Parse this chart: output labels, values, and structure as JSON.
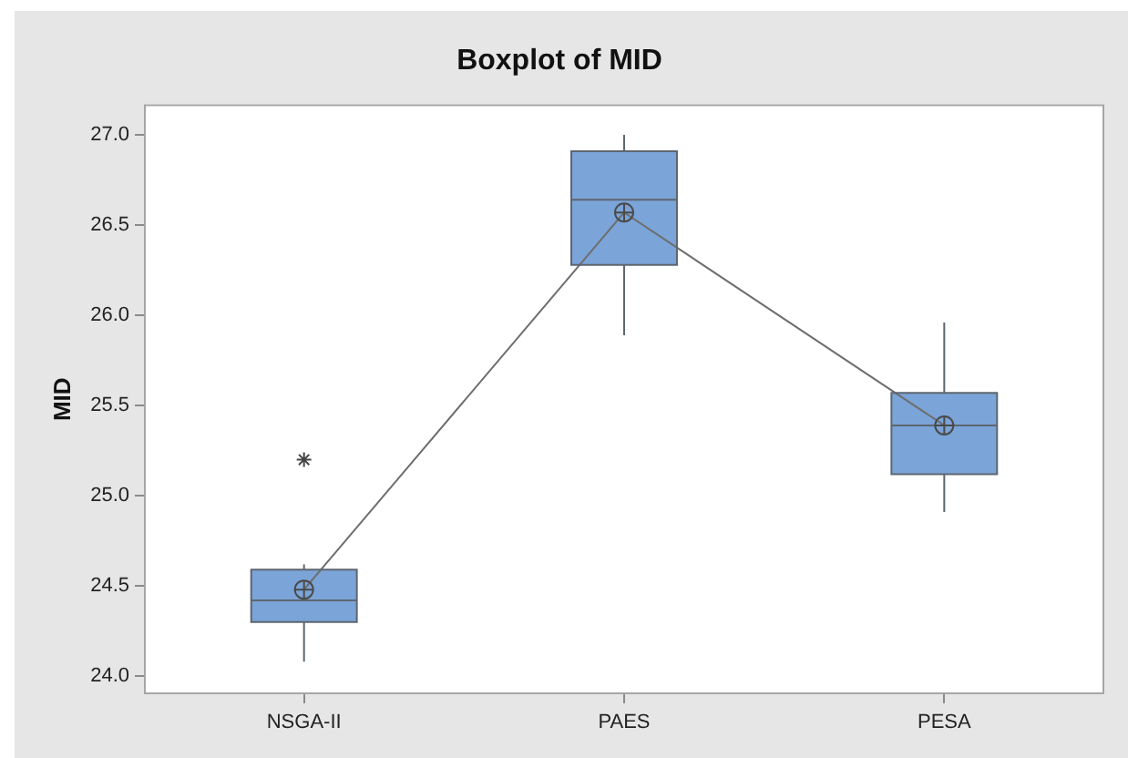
{
  "chart_data": {
    "type": "box",
    "title": "Boxplot of MID",
    "ylabel": "MID",
    "categories": [
      "NSGA-II",
      "PAES",
      "PESA"
    ],
    "series": [
      {
        "type": "box",
        "color": "#7ba4d8",
        "boxes": [
          {
            "low": 24.08,
            "q1": 24.3,
            "median": 24.42,
            "q3": 24.59,
            "high": 24.62,
            "mean": 24.48,
            "outliers": [
              25.2
            ]
          },
          {
            "low": 25.89,
            "q1": 26.28,
            "median": 26.64,
            "q3": 26.91,
            "high": 27.0,
            "mean": 26.57
          },
          {
            "low": 24.91,
            "q1": 25.12,
            "median": 25.39,
            "q3": 25.57,
            "high": 25.96,
            "mean": 25.39
          }
        ]
      },
      {
        "type": "line",
        "color": "#6e6e6e",
        "values": [
          24.48,
          26.57,
          25.39
        ]
      }
    ],
    "ylim": [
      23.9,
      27.17
    ],
    "yticks": [
      {
        "value": 24,
        "label": "24.0"
      },
      {
        "value": 24.5,
        "label": "24.5"
      },
      {
        "value": 25,
        "label": "25.0"
      },
      {
        "value": 25.5,
        "label": "25.5"
      },
      {
        "value": 26,
        "label": "26.0"
      },
      {
        "value": 26.5,
        "label": "26.5"
      },
      {
        "value": 27,
        "label": "27.0"
      }
    ]
  }
}
